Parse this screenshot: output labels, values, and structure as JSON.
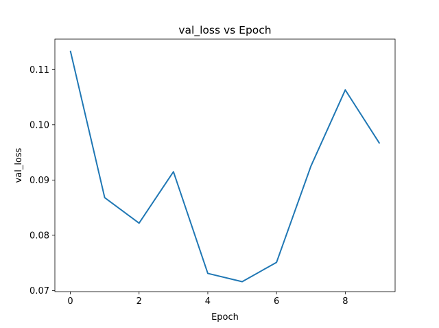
{
  "chart_data": {
    "type": "line",
    "title": "val_loss vs Epoch",
    "xlabel": "Epoch",
    "ylabel": "val_loss",
    "xlim": [
      -0.45,
      9.45
    ],
    "ylim": [
      0.0698,
      0.1155
    ],
    "x_ticks": [
      0,
      2,
      4,
      6,
      8
    ],
    "x_tick_labels": [
      "0",
      "2",
      "4",
      "6",
      "8"
    ],
    "y_ticks": [
      0.07,
      0.08,
      0.09,
      0.1,
      0.11
    ],
    "y_tick_labels": [
      "0.07",
      "0.08",
      "0.09",
      "0.10",
      "0.11"
    ],
    "grid": false,
    "series": [
      {
        "name": "val_loss",
        "color": "#1f77b4",
        "x": [
          0,
          1,
          2,
          3,
          4,
          5,
          6,
          7,
          8,
          9
        ],
        "values": [
          0.1134,
          0.0868,
          0.0822,
          0.0915,
          0.0731,
          0.0716,
          0.0751,
          0.0925,
          0.1063,
          0.0966
        ]
      }
    ]
  }
}
